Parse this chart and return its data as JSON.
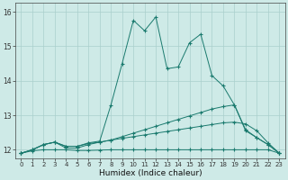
{
  "xlabel": "Humidex (Indice chaleur)",
  "background_color": "#ceeae7",
  "grid_color": "#aacfcc",
  "line_color": "#1a7a6e",
  "xlim": [
    -0.5,
    23.5
  ],
  "ylim": [
    11.75,
    16.25
  ],
  "xticks": [
    0,
    1,
    2,
    3,
    4,
    5,
    6,
    7,
    8,
    9,
    10,
    11,
    12,
    13,
    14,
    15,
    16,
    17,
    18,
    19,
    20,
    21,
    22,
    23
  ],
  "yticks": [
    12,
    13,
    14,
    15,
    16
  ],
  "line_peak_x": [
    0,
    1,
    2,
    3,
    4,
    5,
    6,
    7,
    8,
    9,
    10,
    11,
    12,
    13,
    14,
    15,
    16,
    17,
    18,
    19,
    20,
    21,
    22,
    23
  ],
  "line_peak_y": [
    11.9,
    12.0,
    12.15,
    12.22,
    12.1,
    12.1,
    12.2,
    12.25,
    13.3,
    14.5,
    15.75,
    15.45,
    15.85,
    14.35,
    14.4,
    15.1,
    15.35,
    14.15,
    13.85,
    13.3,
    12.55,
    12.35,
    12.15,
    11.9
  ],
  "line_avg_x": [
    0,
    1,
    2,
    3,
    4,
    5,
    6,
    7,
    8,
    9,
    10,
    11,
    12,
    13,
    14,
    15,
    16,
    17,
    18,
    19,
    20,
    21,
    22,
    23
  ],
  "line_avg_y": [
    11.9,
    12.0,
    12.15,
    12.22,
    12.05,
    12.05,
    12.15,
    12.22,
    12.28,
    12.38,
    12.48,
    12.58,
    12.68,
    12.78,
    12.88,
    12.98,
    13.08,
    13.18,
    13.25,
    13.3,
    12.58,
    12.35,
    12.15,
    11.9
  ],
  "line_q3_x": [
    0,
    1,
    2,
    3,
    4,
    5,
    6,
    7,
    8,
    9,
    10,
    11,
    12,
    13,
    14,
    15,
    16,
    17,
    18,
    19,
    20,
    21,
    22,
    23
  ],
  "line_q3_y": [
    11.9,
    12.0,
    12.15,
    12.22,
    12.1,
    12.1,
    12.18,
    12.22,
    12.28,
    12.33,
    12.38,
    12.43,
    12.48,
    12.53,
    12.58,
    12.63,
    12.68,
    12.73,
    12.78,
    12.8,
    12.75,
    12.55,
    12.2,
    11.9
  ],
  "line_min_x": [
    0,
    1,
    2,
    3,
    4,
    5,
    6,
    7,
    8,
    9,
    10,
    11,
    12,
    13,
    14,
    15,
    16,
    17,
    18,
    19,
    20,
    21,
    22,
    23
  ],
  "line_min_y": [
    11.9,
    11.97,
    12.0,
    12.0,
    12.0,
    11.98,
    11.98,
    11.99,
    12.0,
    12.0,
    12.0,
    12.0,
    12.0,
    12.0,
    12.0,
    12.0,
    12.0,
    12.0,
    12.0,
    12.0,
    12.0,
    12.0,
    12.0,
    11.9
  ]
}
